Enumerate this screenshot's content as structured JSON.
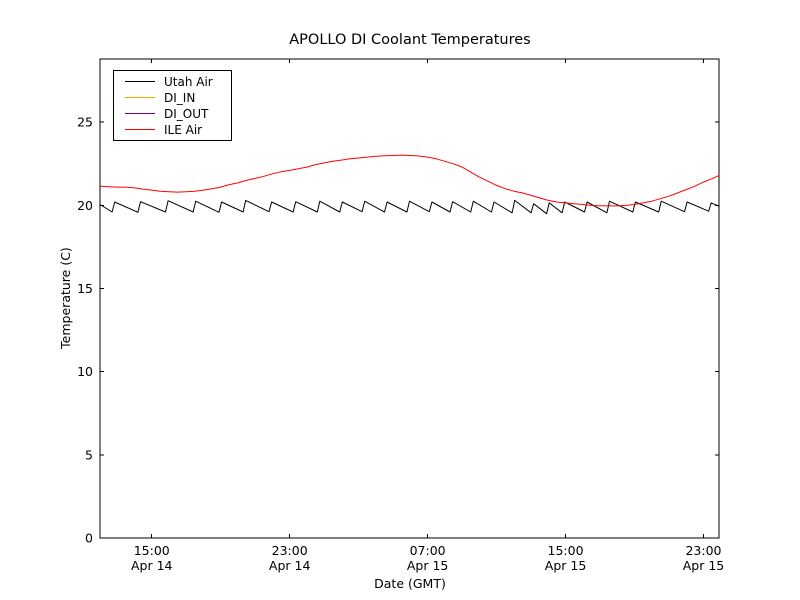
{
  "chart_data": {
    "type": "line",
    "title": "APOLLO DI Coolant Temperatures",
    "xlabel": "Date (GMT)",
    "ylabel": "Temperature (C)",
    "x_unit": "hours since Apr 14 12:00 GMT",
    "xlim": [
      0,
      35.9
    ],
    "ylim": [
      0,
      28.8
    ],
    "yticks": [
      0,
      5,
      10,
      15,
      20,
      25
    ],
    "xticks": [
      {
        "h": 3,
        "time": "15:00",
        "date": "Apr 14"
      },
      {
        "h": 11,
        "time": "23:00",
        "date": "Apr 14"
      },
      {
        "h": 19,
        "time": "07:00",
        "date": "Apr 15"
      },
      {
        "h": 27,
        "time": "15:00",
        "date": "Apr 15"
      },
      {
        "h": 35,
        "time": "23:00",
        "date": "Apr 15"
      }
    ],
    "grid": false,
    "legend_position": "upper left",
    "series": [
      {
        "name": "Utah Air",
        "color": "#000000",
        "visible_in_plot": true,
        "points": [
          [
            0,
            20.05
          ],
          [
            0.7,
            19.6
          ],
          [
            0.85,
            20.2
          ],
          [
            2.2,
            19.58
          ],
          [
            2.35,
            20.22
          ],
          [
            3.8,
            19.6
          ],
          [
            3.95,
            20.28
          ],
          [
            5.4,
            19.6
          ],
          [
            5.55,
            20.25
          ],
          [
            6.9,
            19.58
          ],
          [
            7.05,
            20.2
          ],
          [
            8.3,
            19.6
          ],
          [
            8.45,
            20.3
          ],
          [
            9.8,
            19.62
          ],
          [
            9.95,
            20.2
          ],
          [
            11.2,
            19.6
          ],
          [
            11.35,
            20.22
          ],
          [
            12.6,
            19.6
          ],
          [
            12.75,
            20.25
          ],
          [
            13.9,
            19.6
          ],
          [
            14.05,
            20.2
          ],
          [
            15.2,
            19.62
          ],
          [
            15.35,
            20.25
          ],
          [
            16.5,
            19.6
          ],
          [
            16.65,
            20.2
          ],
          [
            17.8,
            19.6
          ],
          [
            17.95,
            20.25
          ],
          [
            19.1,
            19.62
          ],
          [
            19.25,
            20.2
          ],
          [
            20.3,
            19.6
          ],
          [
            20.45,
            20.22
          ],
          [
            21.5,
            19.6
          ],
          [
            21.65,
            20.25
          ],
          [
            22.7,
            19.6
          ],
          [
            22.85,
            20.2
          ],
          [
            23.9,
            19.55
          ],
          [
            24.05,
            20.3
          ],
          [
            25.0,
            19.55
          ],
          [
            25.15,
            20.1
          ],
          [
            25.9,
            19.5
          ],
          [
            26.05,
            20.15
          ],
          [
            26.8,
            19.55
          ],
          [
            26.95,
            20.2
          ],
          [
            28.1,
            19.6
          ],
          [
            28.25,
            20.2
          ],
          [
            29.4,
            19.55
          ],
          [
            29.55,
            20.25
          ],
          [
            30.9,
            19.6
          ],
          [
            31.05,
            20.2
          ],
          [
            32.4,
            19.6
          ],
          [
            32.55,
            20.25
          ],
          [
            33.9,
            19.62
          ],
          [
            34.05,
            20.2
          ],
          [
            35.3,
            19.65
          ],
          [
            35.45,
            20.15
          ],
          [
            35.9,
            19.95
          ]
        ]
      },
      {
        "name": "DI_IN",
        "color": "#ffa500",
        "visible_in_plot": false,
        "points": []
      },
      {
        "name": "DI_OUT",
        "color": "#800080",
        "visible_in_plot": false,
        "points": []
      },
      {
        "name": "ILE Air",
        "color": "#ff0000",
        "visible_in_plot": true,
        "points": [
          [
            0,
            21.15
          ],
          [
            0.5,
            21.12
          ],
          [
            1,
            21.1
          ],
          [
            1.5,
            21.1
          ],
          [
            2,
            21.05
          ],
          [
            2.5,
            20.98
          ],
          [
            3,
            20.92
          ],
          [
            3.5,
            20.85
          ],
          [
            4,
            20.82
          ],
          [
            4.5,
            20.8
          ],
          [
            5,
            20.82
          ],
          [
            5.5,
            20.85
          ],
          [
            6,
            20.92
          ],
          [
            6.5,
            21.0
          ],
          [
            7,
            21.1
          ],
          [
            7.5,
            21.25
          ],
          [
            8,
            21.35
          ],
          [
            8.5,
            21.5
          ],
          [
            9,
            21.62
          ],
          [
            9.5,
            21.75
          ],
          [
            10,
            21.9
          ],
          [
            10.5,
            22.02
          ],
          [
            11,
            22.1
          ],
          [
            11.5,
            22.2
          ],
          [
            12,
            22.3
          ],
          [
            12.5,
            22.45
          ],
          [
            13,
            22.55
          ],
          [
            13.5,
            22.65
          ],
          [
            14,
            22.72
          ],
          [
            14.5,
            22.8
          ],
          [
            15,
            22.85
          ],
          [
            15.5,
            22.9
          ],
          [
            16,
            22.95
          ],
          [
            16.5,
            22.98
          ],
          [
            17,
            23.0
          ],
          [
            17.5,
            23.02
          ],
          [
            18,
            23.0
          ],
          [
            18.5,
            22.97
          ],
          [
            19,
            22.9
          ],
          [
            19.5,
            22.8
          ],
          [
            20,
            22.65
          ],
          [
            20.5,
            22.5
          ],
          [
            21,
            22.3
          ],
          [
            21.5,
            22.0
          ],
          [
            22,
            21.7
          ],
          [
            22.5,
            21.45
          ],
          [
            23,
            21.2
          ],
          [
            23.5,
            21.0
          ],
          [
            24,
            20.85
          ],
          [
            24.5,
            20.75
          ],
          [
            25,
            20.6
          ],
          [
            25.5,
            20.45
          ],
          [
            26,
            20.3
          ],
          [
            26.5,
            20.2
          ],
          [
            27,
            20.15
          ],
          [
            27.5,
            20.1
          ],
          [
            28,
            20.05
          ],
          [
            28.5,
            20.0
          ],
          [
            29,
            19.98
          ],
          [
            29.5,
            19.97
          ],
          [
            30,
            19.97
          ],
          [
            30.5,
            20.0
          ],
          [
            31,
            20.05
          ],
          [
            31.5,
            20.15
          ],
          [
            32,
            20.25
          ],
          [
            32.5,
            20.4
          ],
          [
            33,
            20.55
          ],
          [
            33.5,
            20.75
          ],
          [
            34,
            20.95
          ],
          [
            34.5,
            21.15
          ],
          [
            35,
            21.4
          ],
          [
            35.5,
            21.6
          ],
          [
            35.9,
            21.8
          ]
        ]
      }
    ]
  }
}
